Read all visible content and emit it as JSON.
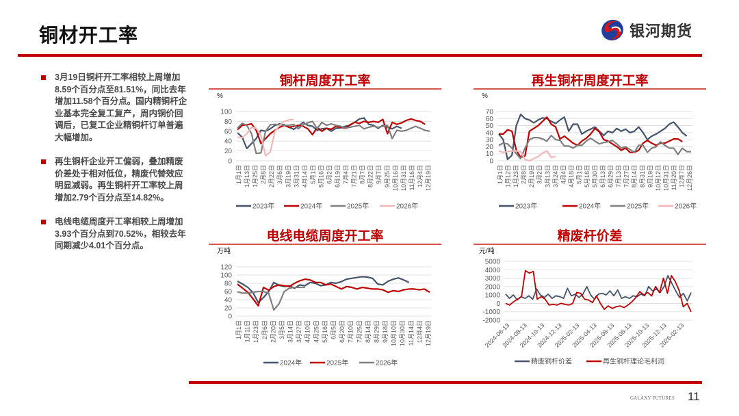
{
  "header": {
    "title": "铜材开工率",
    "logo_text": "银河期货",
    "accent_color": "#c00000"
  },
  "bullets": [
    "3月19日铜杆开工率相较上周增加8.59个百分点至81.51%，同比去年增加11.58个百分点。国内精铜杆企业基本完全复工复产，周内铜价回调后，已复工企业精铜杆订单普遍大幅增加。",
    "再生铜杆企业开工偏弱，叠加精废价差处于相对低位，精废代替效应明显减弱。再生铜杆开工率较上周增加2.79个百分点至14.82%。",
    "电线电缆周度开工率相较上周增加3.93个百分点到70.52%，相较去年同期减少4.01个百分点。"
  ],
  "footer": {
    "brand": "GALAXY FUTURES",
    "page_number": "11"
  },
  "chart_data": [
    {
      "id": "copper-rod",
      "type": "line",
      "title": "铜杆周度开工率",
      "ylabel": "%",
      "ylim": [
        0,
        100
      ],
      "yticks": [
        0,
        20,
        40,
        60,
        80,
        100
      ],
      "grid": true,
      "legend_position": "bottom",
      "categories": [
        "1月1日",
        "1月13日",
        "1月25日",
        "2月8日",
        "2月22日",
        "3月6日",
        "3月19日",
        "3月31日",
        "4月14日",
        "5月1日",
        "5月16日",
        "6月2日",
        "6月19日",
        "7月4日",
        "7月21日",
        "8月7日",
        "8月22日",
        "9月7日",
        "9月25日",
        "10月16日",
        "10月31日",
        "11月16日",
        "12月4日",
        "12月19日"
      ],
      "series": [
        {
          "name": "2023年",
          "color": "#44546a",
          "values": [
            57,
            48,
            25,
            35,
            45,
            62,
            60,
            65,
            72,
            75,
            73,
            68,
            64,
            70,
            78,
            72,
            70,
            62,
            65,
            66,
            60,
            66,
            67,
            70,
            72,
            78,
            85,
            87,
            74,
            72,
            66,
            72,
            68,
            65,
            70,
            66
          ]
        },
        {
          "name": "2024年",
          "color": "#c00000",
          "values": [
            63,
            72,
            73,
            75,
            62,
            35,
            45,
            55,
            62,
            68,
            72,
            68,
            70,
            72,
            70,
            65,
            53,
            68,
            60,
            66,
            64,
            70,
            68,
            66,
            73,
            78,
            76,
            80,
            78,
            80,
            78,
            84,
            55,
            78,
            74,
            77,
            82,
            85,
            82,
            80,
            74
          ]
        },
        {
          "name": "2025年",
          "color": "#7f7f7f",
          "values": [
            66,
            76,
            72,
            55,
            15,
            16,
            60,
            73,
            74,
            73,
            72,
            72,
            74,
            65,
            73,
            77,
            80,
            65,
            78,
            72,
            75,
            72,
            70,
            66,
            68,
            70,
            72,
            65,
            68,
            70,
            68,
            70,
            72,
            45,
            62,
            60,
            62,
            66,
            70,
            66,
            62,
            60
          ]
        },
        {
          "name": "2026年",
          "color": "#f4b6b6",
          "values": [
            48,
            47,
            55,
            68,
            66,
            52,
            10,
            18,
            60,
            72,
            80,
            83,
            84
          ]
        }
      ]
    },
    {
      "id": "recycled-copper-rod",
      "type": "line",
      "title": "再生铜杆周度开工率",
      "ylabel": "%",
      "ylim": [
        0,
        70
      ],
      "yticks": [
        0,
        10,
        20,
        30,
        40,
        50,
        60,
        70
      ],
      "grid": true,
      "legend_position": "bottom",
      "categories": [
        "1月1日",
        "1月12日",
        "1月23日",
        "2月8日",
        "2月19日",
        "3月2日",
        "3月13日",
        "3月24日",
        "4月4日",
        "4月18日",
        "5月1日",
        "5月16日",
        "5月30日",
        "6月13日",
        "6月29日",
        "7月13日",
        "7月27日",
        "8月14日",
        "8月31日",
        "9月19日",
        "10月12日",
        "10月31日",
        "11月20日",
        "12月7日",
        "12月26日"
      ],
      "series": [
        {
          "name": "2023年",
          "color": "#44546a",
          "values": [
            38,
            30,
            2,
            8,
            50,
            66,
            60,
            58,
            54,
            58,
            61,
            60,
            56,
            53,
            58,
            62,
            42,
            52,
            52,
            38,
            42,
            45,
            48,
            42,
            36,
            42,
            40,
            46,
            42,
            45,
            40,
            42,
            48,
            40,
            30,
            35,
            38,
            42,
            46,
            52,
            55,
            48,
            40,
            35
          ]
        },
        {
          "name": "2024年",
          "color": "#c00000",
          "values": [
            38,
            38,
            44,
            42,
            15,
            5,
            7,
            42,
            46,
            50,
            56,
            62,
            52,
            48,
            31,
            35,
            30,
            25,
            22,
            28,
            32,
            38,
            46,
            41,
            30,
            28,
            24,
            20,
            15,
            18,
            12,
            12,
            15,
            25,
            29,
            25,
            22,
            25,
            25,
            28,
            31,
            31,
            27
          ]
        },
        {
          "name": "2025年",
          "color": "#7f7f7f",
          "values": [
            22,
            25,
            24,
            18,
            10,
            3,
            18,
            30,
            33,
            33,
            31,
            28,
            36,
            30,
            29,
            21,
            21,
            18,
            22,
            22,
            28,
            32,
            28,
            24,
            26,
            27,
            29,
            24,
            18,
            20,
            16,
            12,
            22,
            22,
            12,
            18,
            20,
            27,
            22,
            18,
            18,
            9,
            18,
            13,
            13
          ]
        },
        {
          "name": "2026年",
          "color": "#f4b6b6",
          "values": [
            14,
            12,
            13,
            14,
            14,
            13,
            2,
            0,
            3,
            6,
            11,
            14,
            5,
            6
          ]
        }
      ]
    },
    {
      "id": "wire-cable",
      "type": "line",
      "title": "电线电缆周度开工率",
      "ylabel": "万吨",
      "ylim": [
        0,
        120
      ],
      "yticks": [
        0,
        20,
        40,
        60,
        80,
        100,
        120
      ],
      "grid": true,
      "legend_position": "bottom",
      "categories": [
        "1月1日",
        "1月11日",
        "1月23日",
        "2月6日",
        "2月20日",
        "3月5日",
        "3月14日",
        "3月27日",
        "4月10日",
        "4月25日",
        "5月16日",
        "6月5日",
        "6月20日",
        "7月10日",
        "7月25日",
        "8月14日",
        "8月29日",
        "9月18日",
        "10月10日",
        "10月30日",
        "11月14日",
        "12月4日",
        "12月19日"
      ],
      "series": [
        {
          "name": "2024年",
          "color": "#44546a",
          "values": [
            85,
            78,
            70,
            57,
            33,
            45,
            60,
            82,
            75,
            72,
            74,
            68,
            76,
            74,
            82,
            80,
            74,
            76,
            82,
            80,
            84,
            90,
            92,
            94,
            96,
            95,
            92,
            78,
            76,
            85,
            90,
            93,
            88,
            82
          ]
        },
        {
          "name": "2025年",
          "color": "#c00000",
          "values": [
            78,
            68,
            58,
            42,
            25,
            70,
            63,
            72,
            76,
            74,
            72,
            80,
            86,
            90,
            88,
            82,
            82,
            76,
            78,
            72,
            66,
            72,
            70,
            66,
            70,
            68,
            66,
            66,
            64,
            58,
            62,
            60,
            64,
            66,
            66,
            64,
            66,
            58
          ]
        },
        {
          "name": "2026年",
          "color": "#7f7f7f",
          "values": [
            59,
            56,
            56,
            58,
            60,
            60,
            56,
            15,
            30,
            60,
            68,
            70,
            70,
            70
          ]
        }
      ]
    },
    {
      "id": "refined-scrap-spread",
      "type": "line",
      "title": "精废杆价差",
      "ylabel": "元/吨",
      "ylim": [
        -2000,
        5000
      ],
      "yticks": [
        -2000,
        -1000,
        0,
        1000,
        2000,
        3000,
        4000,
        5000
      ],
      "grid": true,
      "legend_position": "bottom",
      "categories": [
        "2024-06-13",
        "2024-08-13",
        "2024-10-13",
        "2024-12-13",
        "2025-02-13",
        "2025-04-13",
        "2025-06-13",
        "2025-08-13",
        "2025-10-13",
        "2025-12-13",
        "2026-02-13"
      ],
      "series": [
        {
          "name": "精废铜杆价差",
          "color": "#44546a",
          "values": [
            1100,
            600,
            1000,
            400,
            800,
            600,
            900,
            500,
            1700,
            1000,
            700,
            1100,
            600,
            900,
            800,
            600,
            1800,
            900,
            1100,
            700,
            1100,
            2000,
            1000,
            500,
            1100,
            1200,
            1000,
            1500,
            900,
            1600,
            600,
            800,
            600,
            900,
            800,
            1100,
            900,
            2000,
            1500,
            1700,
            1300,
            2000,
            3300,
            2400,
            1500,
            700,
            1200,
            300,
            1300
          ]
        },
        {
          "name": "再生铜杆理论毛利润",
          "color": "#c00000",
          "values": [
            0,
            -200,
            200,
            500,
            800,
            3900,
            3600,
            3800,
            500,
            800,
            500,
            -200,
            -100,
            -200,
            0,
            -100,
            -200,
            0,
            1300,
            1200,
            500,
            400,
            100,
            900,
            0,
            -700,
            -300,
            -600,
            -400,
            -300,
            -500,
            -200,
            200,
            700,
            1400,
            1000,
            1300,
            900,
            2000,
            1300,
            3000,
            1200,
            3300,
            2600,
            1500,
            -400,
            0,
            -1000
          ]
        }
      ]
    }
  ]
}
